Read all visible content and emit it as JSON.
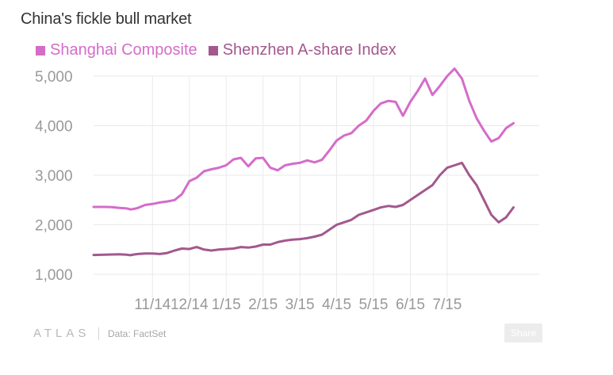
{
  "title": "China's fickle bull market",
  "colors": {
    "shanghai": "#d56cc9",
    "shenzhen": "#a3588e",
    "grid": "#eaeaea",
    "tick_text": "#999999"
  },
  "legend": [
    {
      "label": "Shanghai Composite",
      "color": "#d56cc9"
    },
    {
      "label": "Shenzhen A-share Index",
      "color": "#a3588e"
    }
  ],
  "footer": {
    "logo": "ATLAS",
    "source": "Data: FactSet",
    "share_label": "Share"
  },
  "chart_data": {
    "type": "line",
    "title": "China's fickle bull market",
    "xlabel": "",
    "ylabel": "",
    "x_range": [
      0,
      12.1
    ],
    "x_unit": "months since 2014-09-13",
    "x_tick_values": [
      1.6,
      2.6,
      3.6,
      4.6,
      5.6,
      6.6,
      7.6,
      8.6,
      9.6
    ],
    "x_tick_labels": [
      "11/14",
      "12/14",
      "1/15",
      "2/15",
      "3/15",
      "4/15",
      "5/15",
      "6/15",
      "7/15"
    ],
    "ylim": [
      1000,
      5000
    ],
    "y_ticks": [
      1000,
      2000,
      3000,
      4000,
      5000
    ],
    "y_tick_labels": [
      "1,000",
      "2,000",
      "3,000",
      "4,000",
      "5,000"
    ],
    "grid": true,
    "legend_position": "top-left",
    "series": [
      {
        "name": "Shanghai Composite",
        "color": "#d56cc9",
        "x": [
          0.0,
          0.3,
          0.5,
          0.7,
          0.9,
          1.0,
          1.1,
          1.2,
          1.4,
          1.6,
          1.8,
          2.0,
          2.2,
          2.4,
          2.6,
          2.8,
          3.0,
          3.2,
          3.4,
          3.6,
          3.8,
          4.0,
          4.2,
          4.4,
          4.6,
          4.8,
          5.0,
          5.2,
          5.4,
          5.6,
          5.8,
          6.0,
          6.2,
          6.4,
          6.6,
          6.8,
          7.0,
          7.2,
          7.4,
          7.6,
          7.8,
          8.0,
          8.2,
          8.4,
          8.6,
          8.8,
          9.0,
          9.2,
          9.4,
          9.6,
          9.8,
          10.0,
          10.2,
          10.4,
          10.6,
          10.8,
          11.0,
          11.2,
          11.4
        ],
        "values": [
          2360,
          2360,
          2355,
          2340,
          2330,
          2310,
          2320,
          2340,
          2400,
          2420,
          2450,
          2470,
          2500,
          2620,
          2880,
          2950,
          3080,
          3120,
          3150,
          3200,
          3320,
          3350,
          3180,
          3340,
          3350,
          3150,
          3100,
          3200,
          3230,
          3250,
          3300,
          3260,
          3310,
          3500,
          3700,
          3800,
          3850,
          4000,
          4100,
          4300,
          4450,
          4500,
          4480,
          4200,
          4480,
          4700,
          4950,
          4620,
          4800,
          5000,
          5150,
          4950,
          4500,
          4150,
          3900,
          3680,
          3750,
          3950,
          4050
        ]
      },
      {
        "name": "Shenzhen A-share Index",
        "color": "#a3588e",
        "x": [
          0.0,
          0.3,
          0.5,
          0.7,
          0.9,
          1.0,
          1.1,
          1.2,
          1.4,
          1.6,
          1.8,
          2.0,
          2.2,
          2.4,
          2.6,
          2.8,
          3.0,
          3.2,
          3.4,
          3.6,
          3.8,
          4.0,
          4.2,
          4.4,
          4.6,
          4.8,
          5.0,
          5.2,
          5.4,
          5.6,
          5.8,
          6.0,
          6.2,
          6.4,
          6.6,
          6.8,
          7.0,
          7.2,
          7.4,
          7.6,
          7.8,
          8.0,
          8.2,
          8.4,
          8.6,
          8.8,
          9.0,
          9.2,
          9.4,
          9.6,
          9.8,
          10.0,
          10.2,
          10.4,
          10.6,
          10.8,
          11.0,
          11.2,
          11.4
        ],
        "values": [
          1390,
          1395,
          1400,
          1405,
          1395,
          1385,
          1400,
          1410,
          1420,
          1420,
          1410,
          1430,
          1480,
          1520,
          1510,
          1550,
          1500,
          1480,
          1500,
          1510,
          1520,
          1550,
          1540,
          1560,
          1600,
          1600,
          1650,
          1680,
          1700,
          1710,
          1730,
          1760,
          1800,
          1900,
          2000,
          2050,
          2100,
          2200,
          2250,
          2300,
          2350,
          2380,
          2360,
          2400,
          2500,
          2600,
          2700,
          2800,
          3000,
          3150,
          3200,
          3250,
          3000,
          2800,
          2500,
          2200,
          2050,
          2150,
          2350
        ]
      }
    ]
  }
}
